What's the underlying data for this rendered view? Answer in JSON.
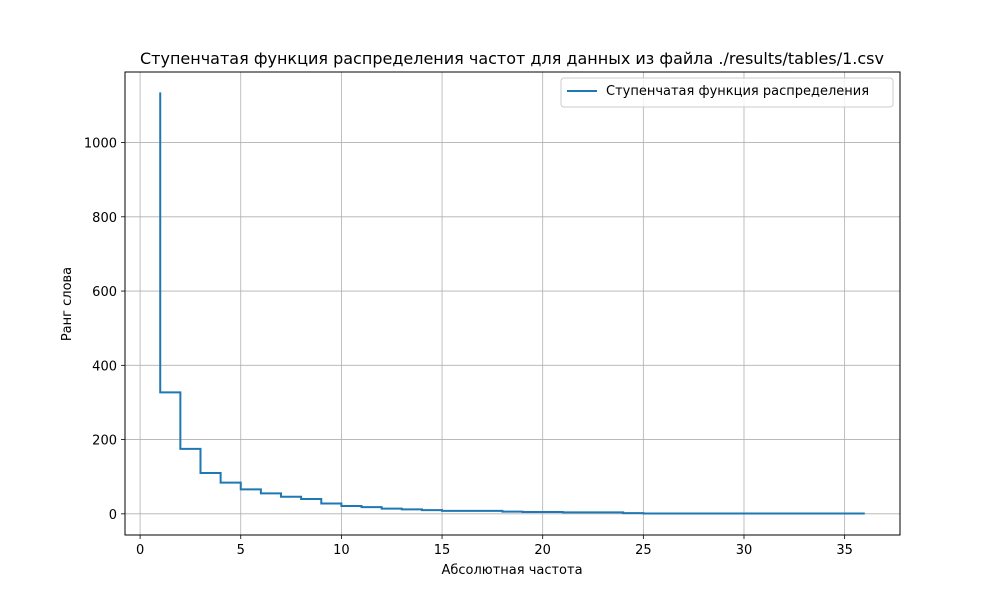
{
  "chart_data": {
    "type": "line",
    "drawstyle": "steps-post",
    "title": "Ступенчатая функция распределения частот для данных из файла ./results/tables/1.csv",
    "xlabel": "Абсолютная частота",
    "ylabel": "Ранг слова",
    "xlim": [
      -0.75,
      37.75
    ],
    "ylim": [
      -57,
      1190
    ],
    "xticks": [
      0,
      5,
      10,
      15,
      20,
      25,
      30,
      35
    ],
    "yticks": [
      0,
      200,
      400,
      600,
      800,
      1000
    ],
    "grid": true,
    "legend_position": "top-right",
    "series": [
      {
        "name": "Ступенчатая функция распределения",
        "color": "#1f77b4",
        "points": [
          [
            1,
            1135
          ],
          [
            1,
            327
          ],
          [
            2,
            327
          ],
          [
            2,
            175
          ],
          [
            3,
            175
          ],
          [
            3,
            110
          ],
          [
            4,
            110
          ],
          [
            4,
            84
          ],
          [
            5,
            84
          ],
          [
            5,
            66
          ],
          [
            6,
            66
          ],
          [
            6,
            55
          ],
          [
            7,
            55
          ],
          [
            7,
            46
          ],
          [
            8,
            46
          ],
          [
            8,
            40
          ],
          [
            9,
            40
          ],
          [
            9,
            28
          ],
          [
            10,
            28
          ],
          [
            10,
            21
          ],
          [
            11,
            21
          ],
          [
            11,
            18
          ],
          [
            12,
            18
          ],
          [
            12,
            14
          ],
          [
            13,
            14
          ],
          [
            13,
            12
          ],
          [
            14,
            12
          ],
          [
            14,
            10
          ],
          [
            15,
            10
          ],
          [
            15,
            8
          ],
          [
            18,
            8
          ],
          [
            18,
            6
          ],
          [
            19,
            6
          ],
          [
            19,
            5
          ],
          [
            21,
            5
          ],
          [
            21,
            4
          ],
          [
            24,
            4
          ],
          [
            24,
            2
          ],
          [
            25,
            2
          ],
          [
            25,
            1
          ],
          [
            36,
            1
          ]
        ]
      }
    ]
  }
}
